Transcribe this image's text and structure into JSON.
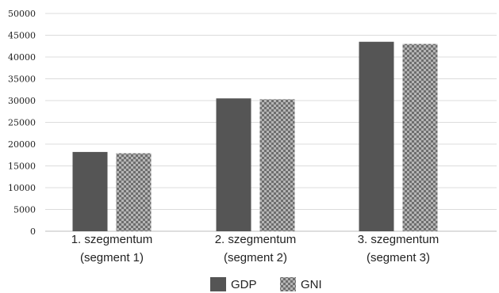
{
  "chart_data": {
    "type": "bar",
    "title": "",
    "xlabel": "",
    "ylabel": "",
    "ylim": [
      0,
      50000
    ],
    "yticks": [
      0,
      5000,
      10000,
      15000,
      20000,
      25000,
      30000,
      35000,
      40000,
      45000,
      50000
    ],
    "grid": true,
    "legend_position": "bottom",
    "categories": [
      [
        "1. szegmentum",
        "(segment 1)"
      ],
      [
        "2. szegmentum",
        "(segment 2)"
      ],
      [
        "3. szegmentum",
        "(segment 3)"
      ]
    ],
    "series": [
      {
        "name": "GDP",
        "values": [
          18200,
          30500,
          43500
        ],
        "color": "#555555",
        "pattern": "solid"
      },
      {
        "name": "GNI",
        "values": [
          17900,
          30300,
          43000
        ],
        "color": "#9a9a9a",
        "pattern": "checker"
      }
    ]
  }
}
